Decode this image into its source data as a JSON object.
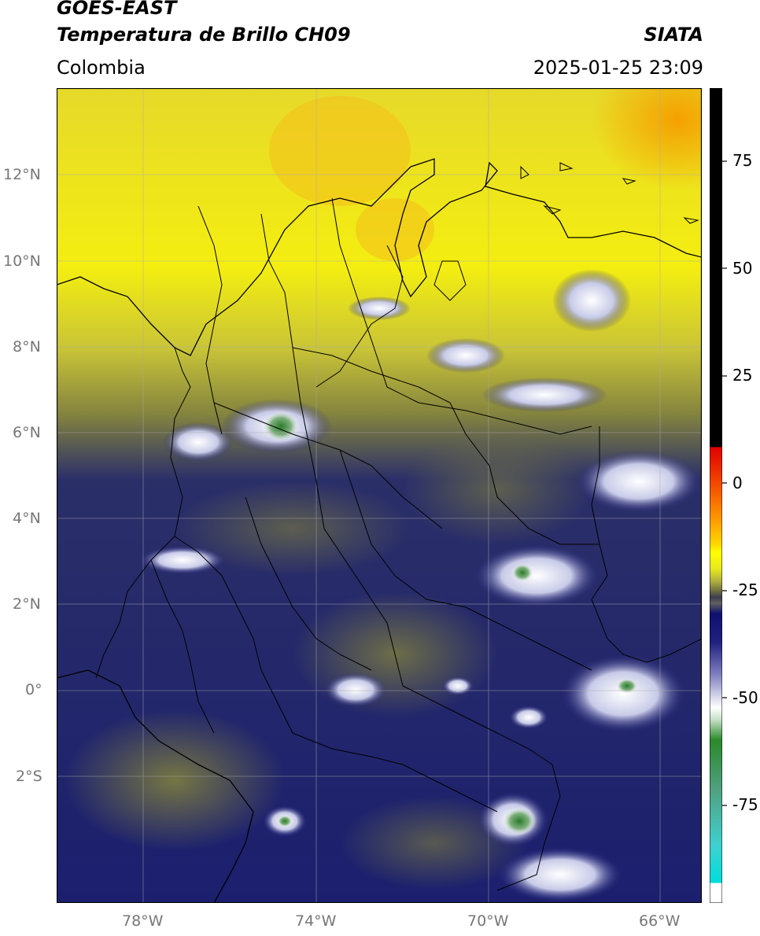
{
  "header": {
    "satellite": "GOES-EAST",
    "product": "Temperatura de Brillo CH09",
    "region": "Colombia",
    "brand": "SIATA",
    "datetime": "2025-01-25 23:09"
  },
  "map": {
    "extent": {
      "lon_min": -80.0,
      "lon_max": -65.0,
      "lat_min": -4.2,
      "lat_max": 14.0
    },
    "lat_ticks": [
      "12°N",
      "10°N",
      "8°N",
      "6°N",
      "4°N",
      "2°N",
      "0°",
      "2°S"
    ],
    "lon_ticks": [
      "78°W",
      "74°W",
      "70°W",
      "66°W"
    ],
    "colorbar_ticks": [
      "75",
      "50",
      "25",
      "0",
      "-25",
      "-50",
      "-75"
    ],
    "colorbar_colors": {
      "black": "#000000",
      "red": "#e00000",
      "orange": "#ff8a00",
      "yellow": "#ffff00",
      "olive": "#7a7a40",
      "navy": "#101070",
      "white": "#ffffff",
      "green": "#2a8a2a",
      "cyan": "#00dddd"
    }
  }
}
